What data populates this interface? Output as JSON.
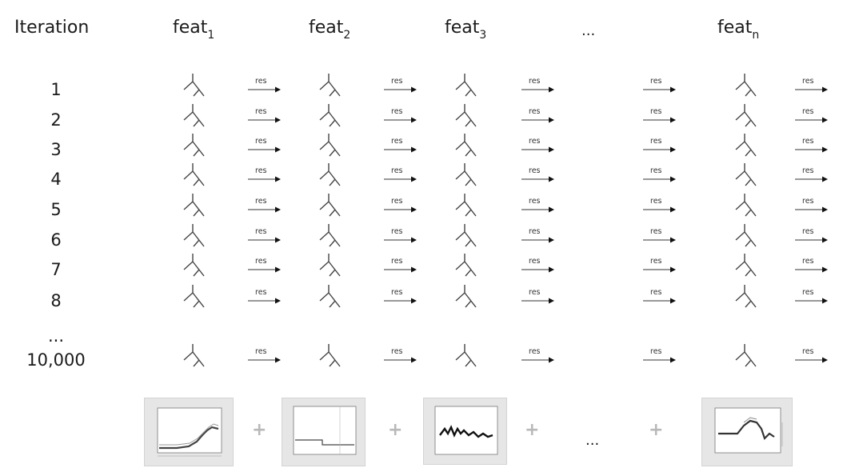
{
  "header": {
    "iteration_label": "Iteration",
    "features": [
      {
        "base": "feat",
        "sub": "1"
      },
      {
        "base": "feat",
        "sub": "2"
      },
      {
        "base": "feat",
        "sub": "3"
      },
      {
        "base": "feat",
        "sub": "n"
      }
    ],
    "ellipsis": "..."
  },
  "iterations": [
    "1",
    "2",
    "3",
    "4",
    "5",
    "6",
    "7",
    "8",
    "...",
    "10,000"
  ],
  "residual_label": "res",
  "bottom": {
    "plus": "+",
    "ellipsis": "..."
  }
}
